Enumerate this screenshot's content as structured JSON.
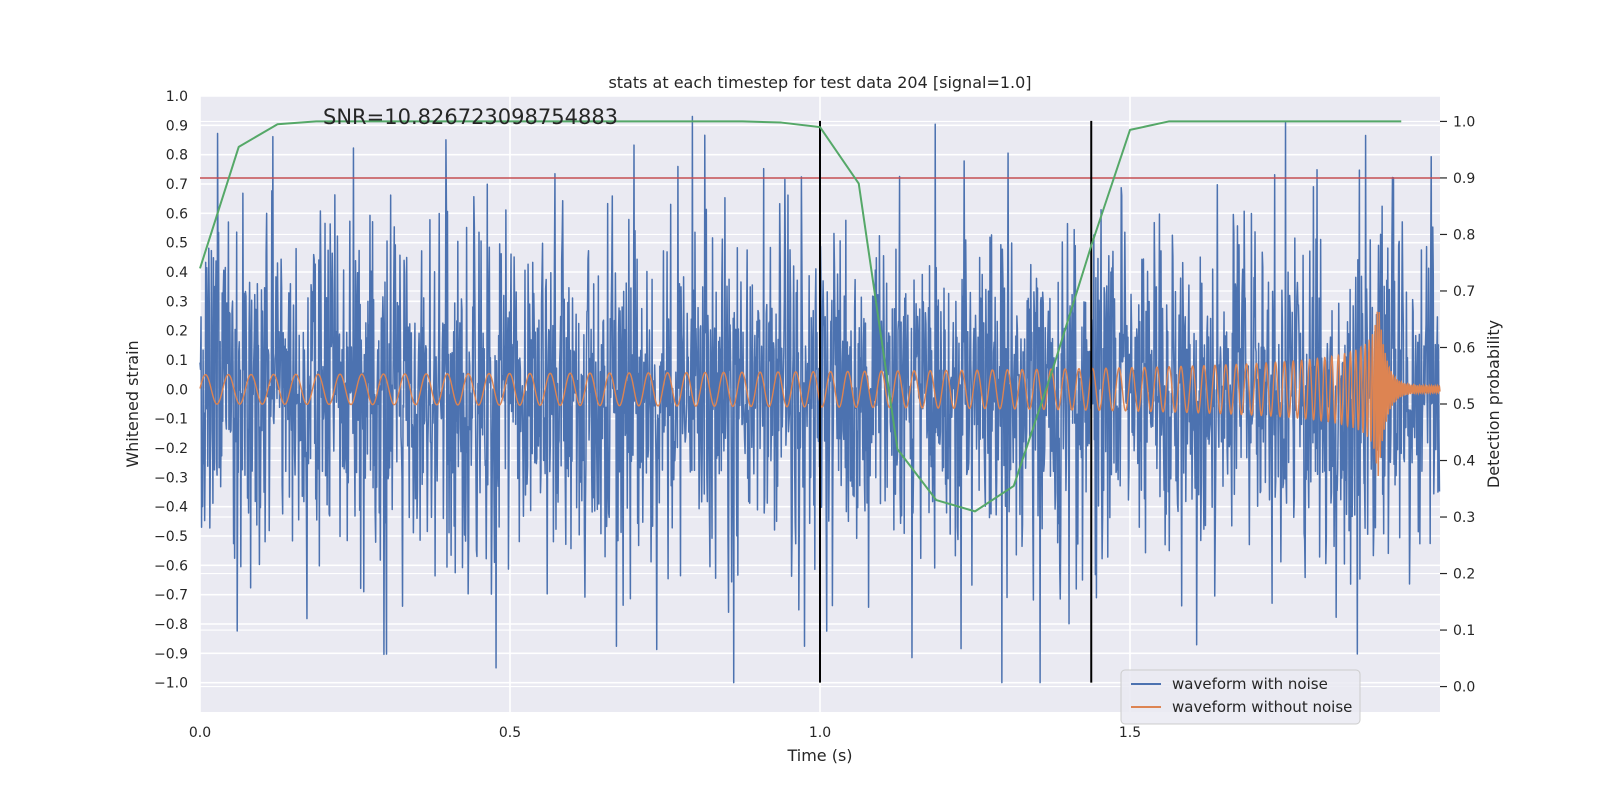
{
  "chart_data": {
    "type": "line",
    "title": "stats at each timestep for test data 204 [signal=1.0]",
    "xlabel": "Time (s)",
    "ylabel": "Whitened strain",
    "y2label": "Detection probability",
    "xlim": [
      0.0,
      2.0
    ],
    "ylim": [
      -1.1,
      1.0
    ],
    "y2lim": [
      -0.045,
      1.045
    ],
    "xticks": [
      0.0,
      0.5,
      1.0,
      1.5
    ],
    "xtick_labels": [
      "0.0",
      "0.5",
      "1.0",
      "1.5"
    ],
    "yticks": [
      1.0,
      0.9,
      0.8,
      0.7,
      0.6,
      0.5,
      0.4,
      0.3,
      0.2,
      0.1,
      0.0,
      -0.1,
      -0.2,
      -0.3,
      -0.4,
      -0.5,
      -0.6,
      -0.7,
      -0.8,
      -0.9,
      -1.0
    ],
    "ytick_labels": [
      "1.0",
      "0.9",
      "0.8",
      "0.7",
      "0.6",
      "0.5",
      "0.4",
      "0.3",
      "0.2",
      "0.1",
      "0.0",
      "−0.1",
      "−0.2",
      "−0.3",
      "−0.4",
      "−0.5",
      "−0.6",
      "−0.7",
      "−0.8",
      "−0.9",
      "−1.0"
    ],
    "y2ticks": [
      1.0,
      0.9,
      0.8,
      0.7,
      0.6,
      0.5,
      0.4,
      0.3,
      0.2,
      0.1,
      0.0
    ],
    "y2tick_labels": [
      "1.0",
      "0.9",
      "0.8",
      "0.7",
      "0.6",
      "0.5",
      "0.4",
      "0.3",
      "0.2",
      "0.1",
      "0.0"
    ],
    "grid": true,
    "annotation": "SNR=10.826723098754883",
    "threshold": {
      "axis": "right",
      "value": 0.9,
      "color": "#c44e52"
    },
    "vertical_lines": [
      {
        "x": 1.0,
        "ymin": -1.0,
        "ymax": 0.915,
        "color": "#000000"
      },
      {
        "x": 1.4375,
        "ymin": -1.0,
        "ymax": 0.915,
        "color": "#000000"
      }
    ],
    "noisy_waveform": {
      "seed": 204,
      "samples": 2400,
      "duration": 2.0,
      "amplitude": 0.3
    },
    "series": [
      {
        "name": "waveform with noise",
        "axis": "left",
        "color": "#4c72b0",
        "style": "noise",
        "in_legend": true
      },
      {
        "name": "waveform without noise",
        "axis": "left",
        "color": "#dd8452",
        "style": "chirp",
        "in_legend": true,
        "chirp": {
          "start_freq": 27,
          "end_freq": 310,
          "start_amp": 0.05,
          "peak_amp": 0.3,
          "merger_time": 1.9
        }
      },
      {
        "name": "detection probability",
        "axis": "right",
        "color": "#55a868",
        "style": "line",
        "in_legend": false,
        "x": [
          0.0,
          0.0625,
          0.125,
          0.1875,
          0.25,
          0.3125,
          0.375,
          0.4375,
          0.5,
          0.5625,
          0.625,
          0.6875,
          0.75,
          0.8125,
          0.875,
          0.9375,
          1.0,
          1.0625,
          1.125,
          1.1875,
          1.25,
          1.3125,
          1.375,
          1.4375,
          1.5,
          1.5625,
          1.625,
          1.6875,
          1.75,
          1.8125,
          1.875,
          1.9375
        ],
        "values": [
          0.74,
          0.955,
          0.995,
          1.0,
          1.0,
          1.0,
          1.0,
          1.0,
          1.0,
          1.0,
          1.0,
          1.0,
          1.0,
          1.0,
          1.0,
          0.998,
          0.99,
          0.89,
          0.42,
          0.33,
          0.31,
          0.355,
          0.56,
          0.78,
          0.985,
          1.0,
          1.0,
          1.0,
          1.0,
          1.0,
          1.0,
          1.0
        ]
      }
    ],
    "legend": {
      "location": "lower-right"
    }
  }
}
